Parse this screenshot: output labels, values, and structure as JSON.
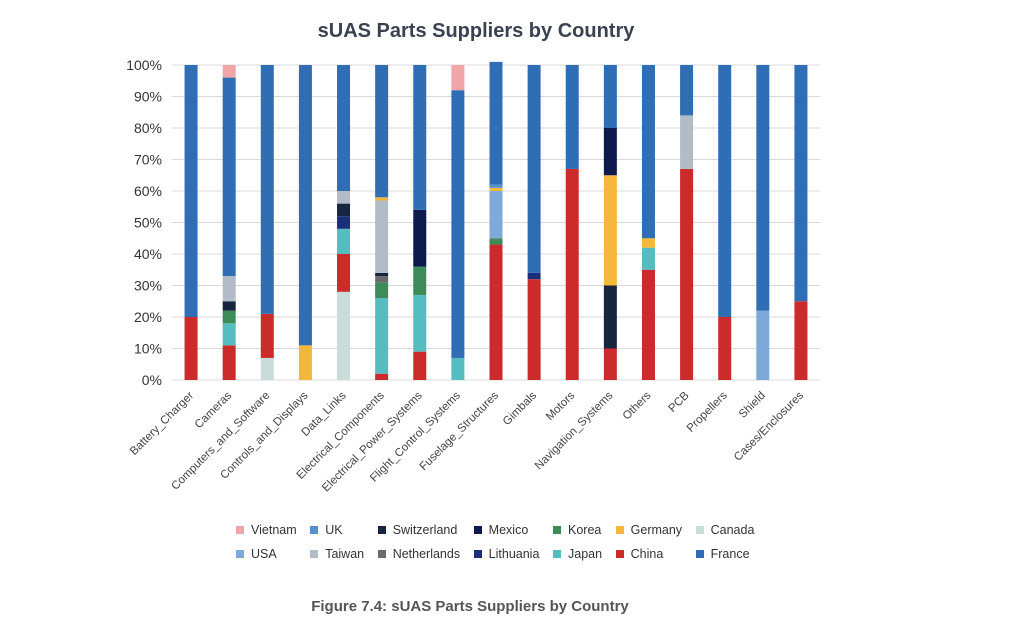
{
  "chart_data": {
    "type": "bar",
    "stacked": true,
    "title": "sUAS Parts Suppliers by Country",
    "caption": "Figure 7.4: sUAS Parts Suppliers by Country",
    "ylim": [
      0,
      100
    ],
    "yticks": [
      "0%",
      "10%",
      "20%",
      "30%",
      "40%",
      "50%",
      "60%",
      "70%",
      "80%",
      "90%",
      "100%"
    ],
    "grid": true,
    "legend_position": "bottom",
    "categories": [
      "Battery_Charger",
      "Cameras",
      "Computers_and_Software",
      "Controls_and_Displays",
      "Data_Links",
      "Electrical_Components",
      "Electrical_Power_Systems",
      "Flight_Control_Systems",
      "Fuselage_Structures",
      "Gimbals",
      "Motors",
      "Navigation_Systems",
      "Others",
      "PCB",
      "Propellers",
      "Shield",
      "Cases/Enclosures"
    ],
    "stack_order": [
      "Canada",
      "China",
      "Japan",
      "Korea",
      "Lithuania",
      "Netherlands",
      "Switzerland",
      "Taiwan",
      "USA",
      "Germany",
      "Mexico",
      "UK",
      "France",
      "Vietnam"
    ],
    "series": [
      {
        "name": "Canada",
        "color": "#c9dcd9",
        "values": [
          0,
          0,
          7,
          0,
          28,
          0,
          0,
          0,
          0,
          0,
          0,
          0,
          0,
          0,
          0,
          0,
          0
        ]
      },
      {
        "name": "China",
        "color": "#cc2b2b",
        "values": [
          20,
          11,
          14,
          0,
          12,
          2,
          9,
          0,
          43,
          32,
          67,
          10,
          35,
          67,
          20,
          0,
          25
        ]
      },
      {
        "name": "Japan",
        "color": "#55bcc0",
        "values": [
          0,
          7,
          0,
          0,
          8,
          24,
          18,
          7,
          0,
          0,
          0,
          0,
          7,
          0,
          0,
          0,
          0
        ]
      },
      {
        "name": "Korea",
        "color": "#3e8b5a",
        "values": [
          0,
          4,
          0,
          0,
          0,
          5,
          9,
          0,
          2,
          0,
          0,
          0,
          0,
          0,
          0,
          0,
          0
        ]
      },
      {
        "name": "Lithuania",
        "color": "#1b2e7a",
        "values": [
          0,
          0,
          0,
          0,
          4,
          0,
          0,
          0,
          0,
          2,
          0,
          0,
          0,
          0,
          0,
          0,
          0
        ]
      },
      {
        "name": "Netherlands",
        "color": "#6b6b6b",
        "values": [
          0,
          0,
          0,
          0,
          0,
          2,
          0,
          0,
          0,
          0,
          0,
          0,
          0,
          0,
          0,
          0,
          0
        ]
      },
      {
        "name": "Switzerland",
        "color": "#18253f",
        "values": [
          0,
          3,
          0,
          0,
          4,
          1,
          0,
          0,
          0,
          0,
          0,
          20,
          0,
          0,
          0,
          0,
          0
        ]
      },
      {
        "name": "Taiwan",
        "color": "#b2bcc6",
        "values": [
          0,
          8,
          0,
          0,
          4,
          23,
          0,
          0,
          0,
          0,
          0,
          0,
          0,
          17,
          0,
          0,
          0
        ]
      },
      {
        "name": "USA",
        "color": "#7ea8d8",
        "values": [
          0,
          0,
          0,
          0,
          0,
          0,
          0,
          0,
          15,
          0,
          0,
          0,
          0,
          0,
          0,
          22,
          0
        ]
      },
      {
        "name": "Germany",
        "color": "#f2b73b",
        "values": [
          0,
          0,
          0,
          11,
          0,
          1,
          0,
          0,
          1,
          0,
          0,
          35,
          3,
          0,
          0,
          0,
          0
        ]
      },
      {
        "name": "Mexico",
        "color": "#0e1a4e",
        "values": [
          0,
          0,
          0,
          0,
          0,
          0,
          18,
          0,
          0,
          0,
          0,
          15,
          0,
          0,
          0,
          0,
          0
        ]
      },
      {
        "name": "UK",
        "color": "#5a8fd0",
        "values": [
          0,
          0,
          0,
          0,
          0,
          0,
          0,
          0,
          1,
          0,
          0,
          0,
          0,
          0,
          0,
          0,
          0
        ]
      },
      {
        "name": "France",
        "color": "#2f6db5",
        "values": [
          80,
          63,
          79,
          89,
          40,
          42,
          46,
          85,
          39,
          66,
          33,
          20,
          55,
          16,
          80,
          78,
          75
        ]
      },
      {
        "name": "Vietnam",
        "color": "#f0a5a8",
        "values": [
          0,
          4,
          0,
          0,
          0,
          0,
          0,
          8,
          0,
          0,
          0,
          0,
          0,
          0,
          0,
          0,
          0
        ]
      }
    ],
    "legend": [
      [
        "Vietnam",
        "#f0a5a8"
      ],
      [
        "UK",
        "#5a8fd0"
      ],
      [
        "Switzerland",
        "#18253f"
      ],
      [
        "Mexico",
        "#0e1a4e"
      ],
      [
        "Korea",
        "#3e8b5a"
      ],
      [
        "Germany",
        "#f2b73b"
      ],
      [
        "Canada",
        "#c9dcd9"
      ],
      [
        "USA",
        "#7ea8d8"
      ],
      [
        "Taiwan",
        "#b2bcc6"
      ],
      [
        "Netherlands",
        "#6b6b6b"
      ],
      [
        "Lithuania",
        "#1b2e7a"
      ],
      [
        "Japan",
        "#55bcc0"
      ],
      [
        "China",
        "#cc2b2b"
      ],
      [
        "France",
        "#2f6db5"
      ]
    ]
  }
}
